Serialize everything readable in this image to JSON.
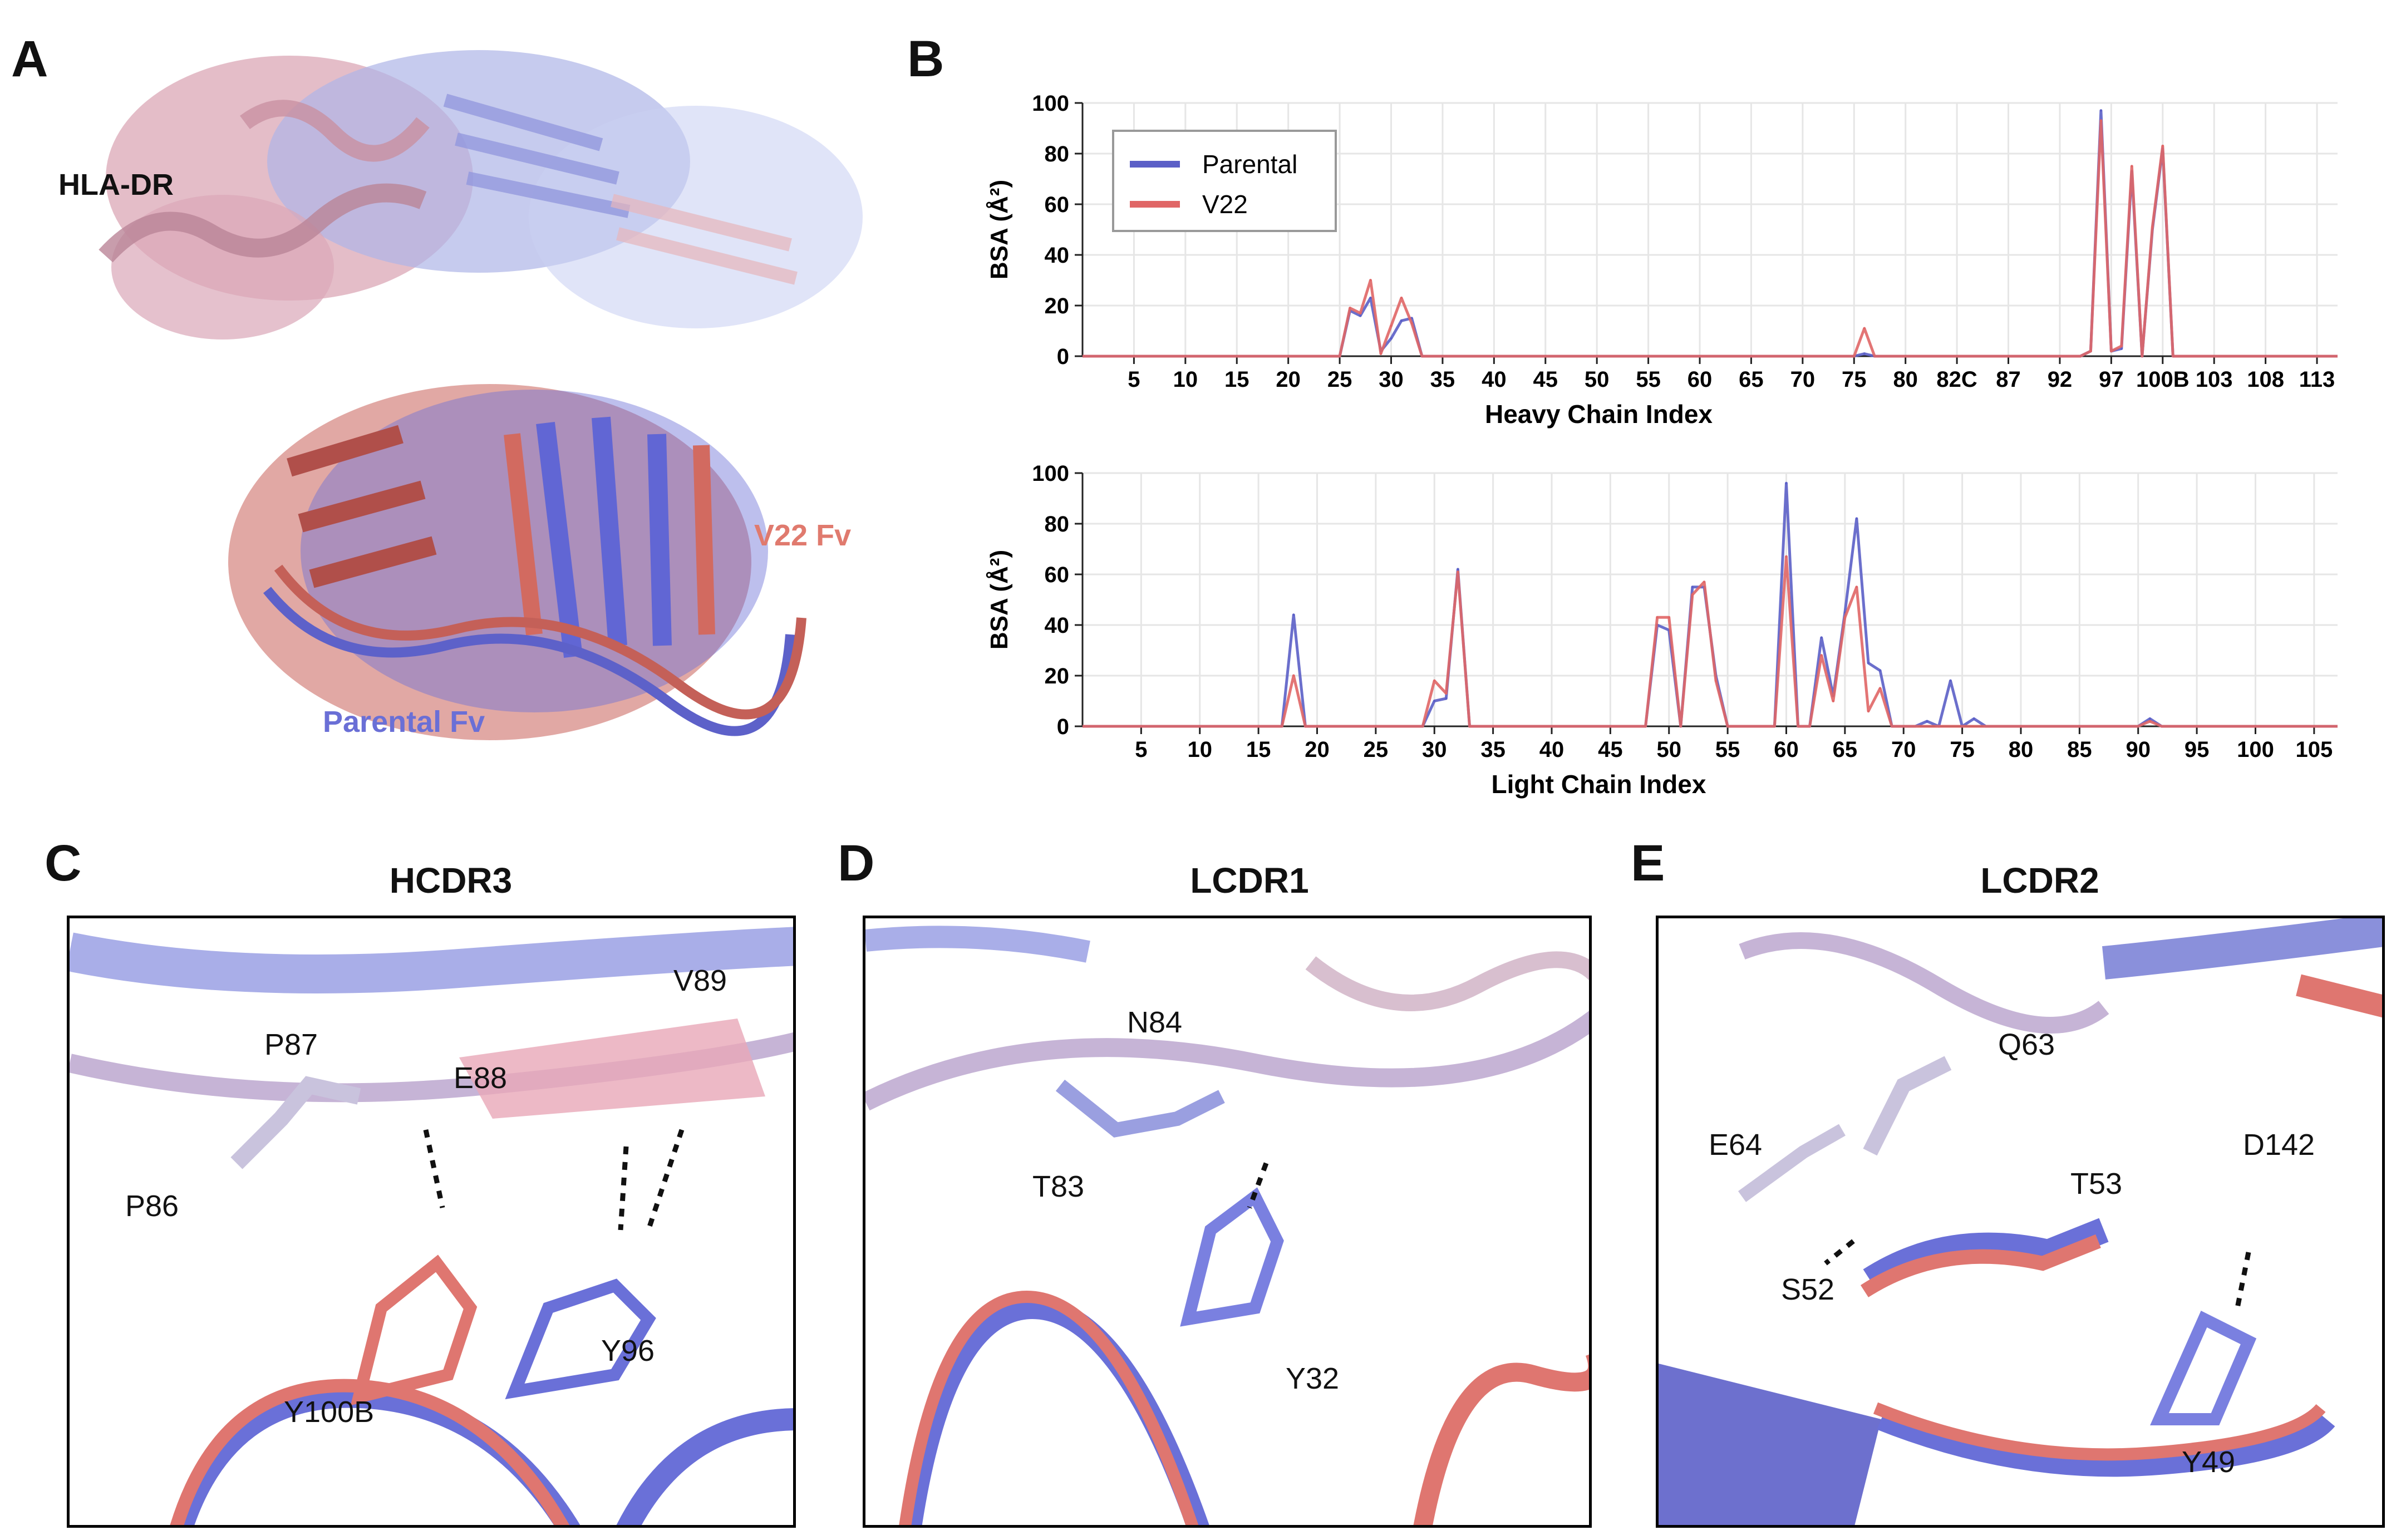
{
  "panels": {
    "A": {
      "letter": "A",
      "labels": {
        "hla": "HLA-DR",
        "v22": "V22 Fv",
        "parental": "Parental Fv"
      },
      "colors": {
        "hla": "#111111",
        "v22": "#e07a6e",
        "parental": "#6a6fd6"
      }
    },
    "B": {
      "letter": "B"
    },
    "C": {
      "letter": "C",
      "title": "HCDR3",
      "residues": [
        "V89",
        "P87",
        "E88",
        "P86",
        "Y96",
        "Y100B"
      ]
    },
    "D": {
      "letter": "D",
      "title": "LCDR1",
      "residues": [
        "N84",
        "T83",
        "Y32"
      ]
    },
    "E": {
      "letter": "E",
      "title": "LCDR2",
      "residues": [
        "Q63",
        "E64",
        "D142",
        "T53",
        "S52",
        "Y49"
      ]
    }
  },
  "colors": {
    "parental": "#5b5fc7",
    "v22": "#e06666",
    "grid": "#e6e6e6"
  },
  "chart_data": [
    {
      "type": "line",
      "xlabel": "Heavy Chain Index",
      "ylabel": "BSA (Å²)",
      "ylim": [
        0,
        100
      ],
      "yticks": [
        0,
        20,
        40,
        60,
        80,
        100
      ],
      "grid": true,
      "legend_position": "top-left",
      "xmax_index": 122,
      "x_tick_labels": [
        {
          "i": 5,
          "label": "5"
        },
        {
          "i": 10,
          "label": "10"
        },
        {
          "i": 15,
          "label": "15"
        },
        {
          "i": 20,
          "label": "20"
        },
        {
          "i": 25,
          "label": "25"
        },
        {
          "i": 30,
          "label": "30"
        },
        {
          "i": 35,
          "label": "35"
        },
        {
          "i": 40,
          "label": "40"
        },
        {
          "i": 45,
          "label": "45"
        },
        {
          "i": 50,
          "label": "50"
        },
        {
          "i": 55,
          "label": "55"
        },
        {
          "i": 60,
          "label": "60"
        },
        {
          "i": 65,
          "label": "65"
        },
        {
          "i": 70,
          "label": "70"
        },
        {
          "i": 75,
          "label": "75"
        },
        {
          "i": 80,
          "label": "80"
        },
        {
          "i": 85,
          "label": "82C"
        },
        {
          "i": 90,
          "label": "87"
        },
        {
          "i": 95,
          "label": "92"
        },
        {
          "i": 100,
          "label": "97"
        },
        {
          "i": 105,
          "label": "100B"
        },
        {
          "i": 110,
          "label": "103"
        },
        {
          "i": 115,
          "label": "108"
        },
        {
          "i": 120,
          "label": "113"
        }
      ],
      "series": [
        {
          "name": "Parental",
          "points": [
            [
              25,
              0
            ],
            [
              26,
              18
            ],
            [
              27,
              16
            ],
            [
              28,
              23
            ],
            [
              29,
              2
            ],
            [
              30,
              7
            ],
            [
              31,
              14
            ],
            [
              32,
              15
            ],
            [
              33,
              0
            ],
            [
              75,
              0
            ],
            [
              76,
              1
            ],
            [
              77,
              0
            ],
            [
              97,
              0
            ],
            [
              98,
              2
            ],
            [
              99,
              97
            ],
            [
              100,
              2
            ],
            [
              101,
              3
            ],
            [
              102,
              73
            ],
            [
              103,
              0
            ],
            [
              104,
              50
            ],
            [
              105,
              82
            ],
            [
              106,
              0
            ]
          ]
        },
        {
          "name": "V22",
          "points": [
            [
              25,
              0
            ],
            [
              26,
              19
            ],
            [
              27,
              17
            ],
            [
              28,
              30
            ],
            [
              29,
              1
            ],
            [
              30,
              12
            ],
            [
              31,
              23
            ],
            [
              32,
              13
            ],
            [
              33,
              0
            ],
            [
              75,
              0
            ],
            [
              76,
              11
            ],
            [
              77,
              0
            ],
            [
              97,
              0
            ],
            [
              98,
              2
            ],
            [
              99,
              93
            ],
            [
              100,
              2
            ],
            [
              101,
              4
            ],
            [
              102,
              75
            ],
            [
              103,
              0
            ],
            [
              104,
              51
            ],
            [
              105,
              83
            ],
            [
              106,
              0
            ]
          ]
        }
      ]
    },
    {
      "type": "line",
      "xlabel": "Light Chain Index",
      "ylabel": "BSA (Å²)",
      "ylim": [
        0,
        100
      ],
      "yticks": [
        0,
        20,
        40,
        60,
        80,
        100
      ],
      "grid": true,
      "xmax_index": 107,
      "x_tick_labels": [
        {
          "i": 5,
          "label": "5"
        },
        {
          "i": 10,
          "label": "10"
        },
        {
          "i": 15,
          "label": "15"
        },
        {
          "i": 20,
          "label": "20"
        },
        {
          "i": 25,
          "label": "25"
        },
        {
          "i": 30,
          "label": "30"
        },
        {
          "i": 35,
          "label": "35"
        },
        {
          "i": 40,
          "label": "40"
        },
        {
          "i": 45,
          "label": "45"
        },
        {
          "i": 50,
          "label": "50"
        },
        {
          "i": 55,
          "label": "55"
        },
        {
          "i": 60,
          "label": "60"
        },
        {
          "i": 65,
          "label": "65"
        },
        {
          "i": 70,
          "label": "70"
        },
        {
          "i": 75,
          "label": "75"
        },
        {
          "i": 80,
          "label": "80"
        },
        {
          "i": 85,
          "label": "85"
        },
        {
          "i": 90,
          "label": "90"
        },
        {
          "i": 95,
          "label": "95"
        },
        {
          "i": 100,
          "label": "100"
        },
        {
          "i": 105,
          "label": "105"
        }
      ],
      "series": [
        {
          "name": "Parental",
          "points": [
            [
              17,
              0
            ],
            [
              18,
              44
            ],
            [
              19,
              0
            ],
            [
              29,
              0
            ],
            [
              30,
              10
            ],
            [
              31,
              11
            ],
            [
              32,
              62
            ],
            [
              33,
              0
            ],
            [
              48,
              0
            ],
            [
              49,
              40
            ],
            [
              50,
              38
            ],
            [
              51,
              0
            ],
            [
              52,
              55
            ],
            [
              53,
              55
            ],
            [
              54,
              20
            ],
            [
              55,
              0
            ],
            [
              59,
              0
            ],
            [
              60,
              96
            ],
            [
              61,
              0
            ],
            [
              62,
              0
            ],
            [
              63,
              35
            ],
            [
              64,
              12
            ],
            [
              65,
              45
            ],
            [
              66,
              82
            ],
            [
              67,
              25
            ],
            [
              68,
              22
            ],
            [
              69,
              0
            ],
            [
              72,
              2
            ],
            [
              73,
              0
            ],
            [
              74,
              18
            ],
            [
              75,
              0
            ],
            [
              76,
              3
            ],
            [
              77,
              0
            ],
            [
              90,
              0
            ],
            [
              91,
              3
            ],
            [
              92,
              0
            ]
          ]
        },
        {
          "name": "V22",
          "points": [
            [
              17,
              0
            ],
            [
              18,
              20
            ],
            [
              19,
              0
            ],
            [
              29,
              0
            ],
            [
              30,
              18
            ],
            [
              31,
              13
            ],
            [
              32,
              61
            ],
            [
              33,
              0
            ],
            [
              48,
              0
            ],
            [
              49,
              43
            ],
            [
              50,
              43
            ],
            [
              51,
              0
            ],
            [
              52,
              52
            ],
            [
              53,
              57
            ],
            [
              54,
              18
            ],
            [
              55,
              0
            ],
            [
              59,
              0
            ],
            [
              60,
              67
            ],
            [
              61,
              0
            ],
            [
              62,
              0
            ],
            [
              63,
              28
            ],
            [
              64,
              10
            ],
            [
              65,
              43
            ],
            [
              66,
              55
            ],
            [
              67,
              6
            ],
            [
              68,
              15
            ],
            [
              69,
              0
            ],
            [
              90,
              0
            ],
            [
              91,
              2
            ],
            [
              92,
              0
            ]
          ]
        }
      ]
    }
  ]
}
